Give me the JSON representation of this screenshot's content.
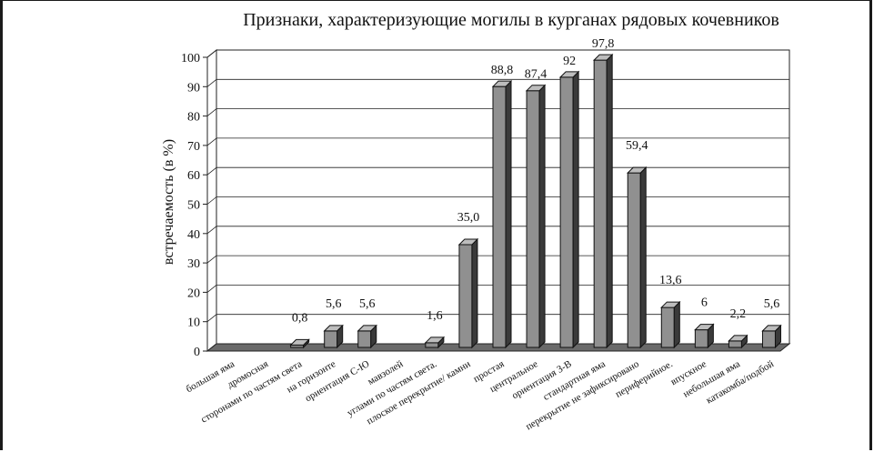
{
  "chart_data": {
    "type": "bar",
    "title": "Признаки, характеризующие могилы в курганах рядовых кочевников",
    "ylabel": "встречаемость (в %)",
    "xlabel": "",
    "ylim": [
      0,
      100
    ],
    "yticks": [
      "0",
      "10",
      "20",
      "30",
      "40",
      "50",
      "60",
      "70",
      "80",
      "90",
      "100"
    ],
    "grid": true,
    "style": "3d-column",
    "bar_color": "#909090",
    "categories": [
      "большая яма",
      "дромосная",
      "сторонами по частям света",
      "на горизонте",
      "ориентация С-Ю",
      "мавзолей",
      "углами по частям света.",
      "плоское перекрытие/ камни",
      "простая",
      "центральное",
      "ориентация З-В",
      "стандартная яма",
      "перекрытие не зафиксировано",
      "периферийное.",
      "впускное",
      "небольшая яма",
      "катакомба/подбой"
    ],
    "values": [
      0,
      0,
      0.8,
      5.6,
      5.6,
      0,
      1.6,
      35.0,
      88.8,
      87.4,
      92,
      97.8,
      59.4,
      13.6,
      6,
      2.2,
      5.6
    ],
    "value_labels": [
      "",
      "",
      "0,8",
      "5,6",
      "5,6",
      "",
      "1,6",
      "35,0",
      "88,8",
      "87,4",
      "92",
      "97,8",
      "59,4",
      "13,6",
      "6",
      "2,2",
      "5,6"
    ]
  }
}
